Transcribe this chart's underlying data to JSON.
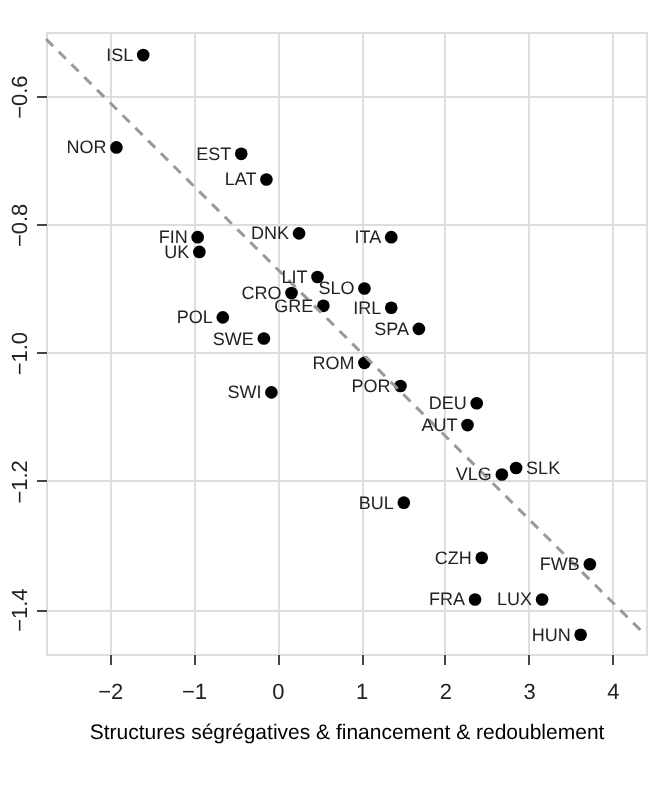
{
  "chart_data": {
    "type": "scatter",
    "xlabel": "Structures ségrégatives & financement & redoublement",
    "xlim": [
      -2.76,
      4.4
    ],
    "ylim": [
      -1.47,
      -0.5
    ],
    "xticks": [
      -2,
      -1,
      0,
      1,
      2,
      3,
      4
    ],
    "yticks": [
      -1.4,
      -1.2,
      {
        "value": -1.0,
        "label": "−1.0"
      },
      -0.8,
      -0.6
    ],
    "grid": true,
    "marker": "circle",
    "series": [
      {
        "color": "#000000",
        "x": [
          -1.6,
          -1.92,
          -0.43,
          -0.13,
          0.26,
          -0.95,
          -0.93,
          0.48,
          0.17,
          0.55,
          -0.65,
          -0.16,
          -0.07,
          1.36,
          1.04,
          1.36,
          1.69,
          1.04,
          1.47,
          2.38,
          2.27,
          2.85,
          2.68,
          1.51,
          2.44,
          3.73,
          2.36,
          3.16,
          3.62
        ],
        "values": [
          -0.536,
          -0.68,
          -0.69,
          -0.73,
          -0.814,
          -0.82,
          -0.843,
          -0.882,
          -0.907,
          -0.927,
          -0.945,
          -0.978,
          -1.062,
          -0.82,
          -0.9,
          -0.93,
          -0.963,
          -1.016,
          -1.052,
          -1.079,
          -1.113,
          -1.18,
          -1.19,
          -1.234,
          -1.32,
          -1.33,
          -1.385,
          -1.385,
          -1.44
        ]
      },
      {
        "type": "line",
        "color": "#999999",
        "line_style": "dashed",
        "marker": "none",
        "x": [
          -2.76,
          4.39
        ],
        "values": [
          -0.511,
          -1.44
        ]
      }
    ],
    "annotations": [
      {
        "text": "ISL",
        "x": -1.6,
        "y": -0.536
      },
      {
        "text": "NOR",
        "x": -1.92,
        "y": -0.68
      },
      {
        "text": "EST",
        "x": -0.43,
        "y": -0.69
      },
      {
        "text": "LAT",
        "x": -0.13,
        "y": -0.73
      },
      {
        "text": "DNK",
        "x": 0.26,
        "y": -0.814
      },
      {
        "text": "FIN",
        "x": -0.95,
        "y": -0.82
      },
      {
        "text": "UK",
        "x": -0.93,
        "y": -0.843
      },
      {
        "text": "LIT",
        "x": 0.48,
        "y": -0.882
      },
      {
        "text": "CRO",
        "x": 0.17,
        "y": -0.907
      },
      {
        "text": "GRE",
        "x": 0.55,
        "y": -0.927
      },
      {
        "text": "POL",
        "x": -0.65,
        "y": -0.945
      },
      {
        "text": "SWE",
        "x": -0.16,
        "y": -0.978
      },
      {
        "text": "SWI",
        "x": -0.07,
        "y": -1.062
      },
      {
        "text": "ITA",
        "x": 1.36,
        "y": -0.82
      },
      {
        "text": "SLO",
        "x": 1.04,
        "y": -0.9
      },
      {
        "text": "IRL",
        "x": 1.36,
        "y": -0.93
      },
      {
        "text": "SPA",
        "x": 1.69,
        "y": -0.963
      },
      {
        "text": "ROM",
        "x": 1.04,
        "y": -1.016
      },
      {
        "text": "POR",
        "x": 1.47,
        "y": -1.052
      },
      {
        "text": "DEU",
        "x": 2.38,
        "y": -1.079
      },
      {
        "text": "AUT",
        "x": 2.27,
        "y": -1.113
      },
      {
        "text": "SLK",
        "x": 2.85,
        "y": -1.18
      },
      {
        "text": "VLG",
        "x": 2.68,
        "y": -1.19
      },
      {
        "text": "BUL",
        "x": 1.51,
        "y": -1.234
      },
      {
        "text": "CZH",
        "x": 2.44,
        "y": -1.32
      },
      {
        "text": "FWB",
        "x": 3.73,
        "y": -1.33
      },
      {
        "text": "FRA",
        "x": 2.36,
        "y": -1.385
      },
      {
        "text": "LUX",
        "x": 3.16,
        "y": -1.385
      },
      {
        "text": "HUN",
        "x": 3.62,
        "y": -1.44
      }
    ]
  }
}
